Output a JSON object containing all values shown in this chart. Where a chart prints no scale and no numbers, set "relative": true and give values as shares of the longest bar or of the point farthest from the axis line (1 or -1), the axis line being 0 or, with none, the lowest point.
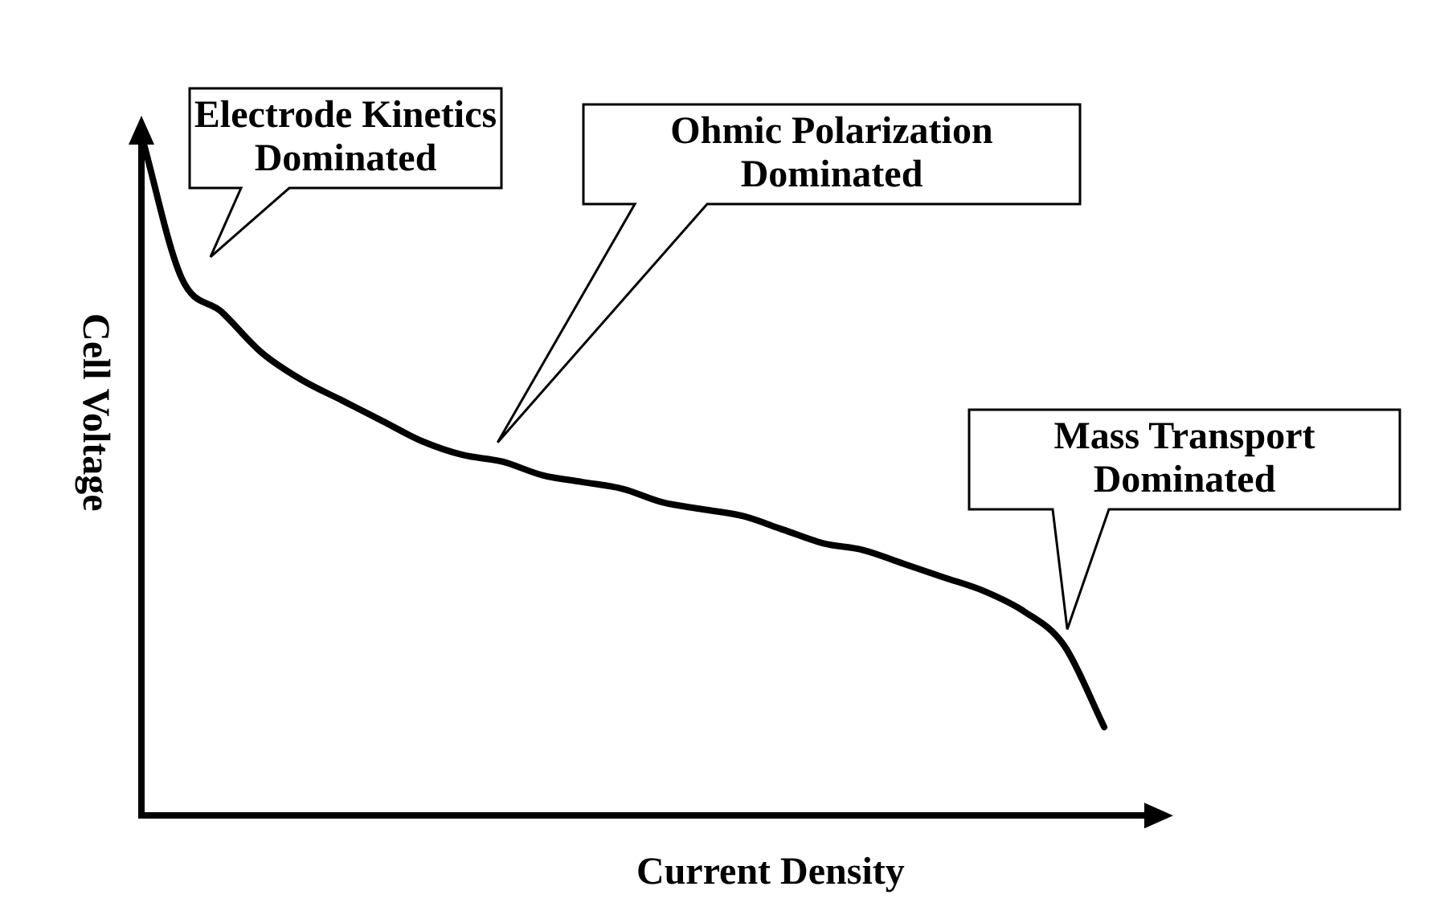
{
  "chart_data": {
    "type": "line",
    "relative": true,
    "xlabel": "Current Density",
    "ylabel": "Cell Voltage",
    "color": "#000000",
    "marker": "none",
    "line_style": "solid",
    "legend": false,
    "grid": false,
    "categories": [
      null,
      null,
      null,
      null,
      null,
      null,
      null,
      null,
      null,
      null,
      null,
      null,
      null,
      null,
      null,
      null,
      null,
      null,
      null,
      null,
      null,
      null,
      null,
      null,
      null,
      null
    ],
    "values": [
      1.0,
      0.79,
      0.74,
      0.68,
      0.64,
      0.61,
      0.58,
      0.55,
      0.53,
      0.52,
      0.5,
      0.49,
      0.48,
      0.46,
      0.45,
      0.44,
      0.42,
      0.4,
      0.39,
      0.37,
      0.35,
      0.33,
      0.3,
      0.25,
      0.13,
      null
    ],
    "annotations": [
      "Electrode Kinetics Dominated",
      "Ohmic Polarization Dominated",
      "Mass Transport Dominated"
    ]
  }
}
